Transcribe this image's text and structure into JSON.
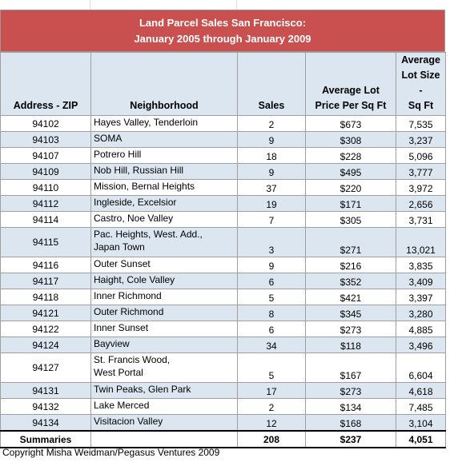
{
  "title": {
    "line1": "Land Parcel Sales San Francisco:",
    "line2": "January 2005 through January 2009"
  },
  "table": {
    "headers": [
      "Address - ZIP",
      "Neighborhood",
      "Sales",
      "Average Lot\nPrice Per Sq Ft",
      "Average\nLot Size -\nSq Ft"
    ],
    "rows": [
      [
        "94102",
        "Hayes Valley, Tenderloin",
        "2",
        "$673",
        "7,535"
      ],
      [
        "94103",
        "SOMA",
        "9",
        "$308",
        "3,237"
      ],
      [
        "94107",
        "Potrero Hill",
        "18",
        "$228",
        "5,096"
      ],
      [
        "94109",
        "Nob Hill, Russian Hill",
        "9",
        "$495",
        "3,777"
      ],
      [
        "94110",
        "Mission, Bernal Heights",
        "37",
        "$220",
        "3,972"
      ],
      [
        "94112",
        "Ingleside, Excelsior",
        "19",
        "$171",
        "2,656"
      ],
      [
        "94114",
        "Castro, Noe Valley",
        "7",
        "$305",
        "3,731"
      ],
      [
        "94115",
        "Pac. Heights, West. Add.,\nJapan Town",
        "3",
        "$271",
        "13,021"
      ],
      [
        "94116",
        "Outer Sunset",
        "9",
        "$216",
        "3,835"
      ],
      [
        "94117",
        "Haight, Cole Valley",
        "6",
        "$352",
        "3,409"
      ],
      [
        "94118",
        "Inner Richmond",
        "5",
        "$421",
        "3,397"
      ],
      [
        "94121",
        "Outer Richmond",
        "8",
        "$345",
        "3,280"
      ],
      [
        "94122",
        "Inner Sunset",
        "6",
        "$273",
        "4,885"
      ],
      [
        "94124",
        "Bayview",
        "34",
        "$118",
        "3,496"
      ],
      [
        "94127",
        "St. Francis Wood,\nWest Portal",
        "5",
        "$167",
        "6,604"
      ],
      [
        "94131",
        "Twin Peaks, Glen Park",
        "17",
        "$273",
        "4,618"
      ],
      [
        "94132",
        "Lake Merced",
        "2",
        "$134",
        "7,485"
      ],
      [
        "94134",
        "Visitacion Valley",
        "12",
        "$168",
        "3,104"
      ]
    ],
    "summary": [
      "Summaries",
      "",
      "208",
      "$237",
      "4,051"
    ]
  },
  "footer": "Copyright Misha Weidman/Pegasus Ventures 2009"
}
